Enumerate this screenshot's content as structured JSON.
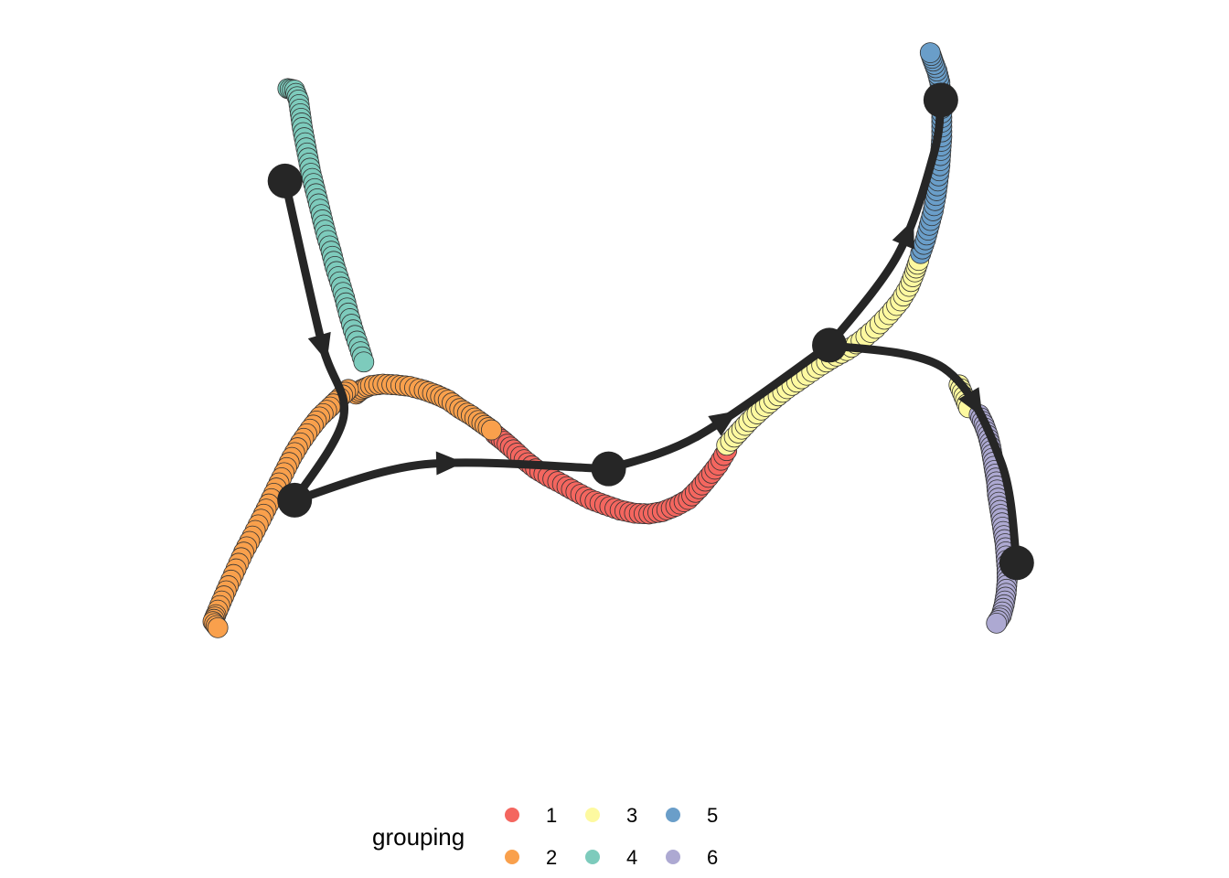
{
  "chart_data": {
    "type": "scatter",
    "title": "",
    "xlabel": "",
    "ylabel": "",
    "axes_visible": false,
    "grid": false,
    "legend": {
      "title": "grouping",
      "position": "bottom",
      "entries": [
        {
          "label": "1",
          "color": "#f4665f"
        },
        {
          "label": "2",
          "color": "#f9a04c"
        },
        {
          "label": "3",
          "color": "#fdf9a0"
        },
        {
          "label": "4",
          "color": "#7dcbbc"
        },
        {
          "label": "5",
          "color": "#6a9ec9"
        },
        {
          "label": "6",
          "color": "#ada9d2"
        }
      ]
    },
    "xlim": [
      0,
      100
    ],
    "ylim": [
      0,
      100
    ],
    "series": [
      {
        "name": "1",
        "color": "#f4665f",
        "points": [
          [
            37.3,
            44.3
          ],
          [
            38.2,
            43.4
          ],
          [
            39.2,
            42.3
          ],
          [
            40.3,
            41.0
          ],
          [
            41.5,
            39.8
          ],
          [
            42.8,
            38.8
          ],
          [
            44.3,
            37.8
          ],
          [
            45.7,
            36.8
          ],
          [
            47.2,
            35.8
          ],
          [
            48.7,
            35.1
          ],
          [
            50.3,
            34.4
          ],
          [
            51.8,
            34.0
          ],
          [
            53.3,
            33.9
          ],
          [
            54.7,
            34.2
          ],
          [
            56.1,
            34.9
          ],
          [
            57.4,
            35.8
          ],
          [
            58.5,
            37.2
          ],
          [
            59.5,
            38.7
          ],
          [
            60.5,
            40.3
          ],
          [
            61.4,
            42.2
          ]
        ]
      },
      {
        "name": "2",
        "color": "#f9a04c",
        "points": [
          [
            22.8,
            49.6
          ],
          [
            23.4,
            50.2
          ],
          [
            24.3,
            50.7
          ],
          [
            25.6,
            50.9
          ],
          [
            27.0,
            50.8
          ],
          [
            28.4,
            50.6
          ],
          [
            29.9,
            50.1
          ],
          [
            31.2,
            49.5
          ],
          [
            32.4,
            48.8
          ],
          [
            33.6,
            47.7
          ],
          [
            34.8,
            46.8
          ],
          [
            35.9,
            45.8
          ],
          [
            36.9,
            44.9
          ],
          [
            22.0,
            50.2
          ],
          [
            21.1,
            49.1
          ],
          [
            20.1,
            47.9
          ],
          [
            19.0,
            46.6
          ],
          [
            18.0,
            45.0
          ],
          [
            17.0,
            43.2
          ],
          [
            16.1,
            41.3
          ],
          [
            15.3,
            39.3
          ],
          [
            14.5,
            37.3
          ],
          [
            13.7,
            35.2
          ],
          [
            12.9,
            33.2
          ],
          [
            12.0,
            31.0
          ],
          [
            11.1,
            28.9
          ],
          [
            10.3,
            26.7
          ],
          [
            9.5,
            24.5
          ],
          [
            8.8,
            22.5
          ],
          [
            8.2,
            20.7
          ],
          [
            7.9,
            19.8
          ],
          [
            8.4,
            19.0
          ]
        ]
      },
      {
        "name": "3",
        "color": "#fdf9a0",
        "points": [
          [
            61.4,
            42.9
          ],
          [
            62.6,
            44.5
          ],
          [
            63.7,
            46.0
          ],
          [
            65.0,
            47.5
          ],
          [
            66.3,
            48.9
          ],
          [
            67.7,
            50.3
          ],
          [
            69.2,
            51.6
          ],
          [
            70.8,
            53.0
          ],
          [
            72.3,
            54.2
          ],
          [
            73.9,
            55.3
          ],
          [
            75.4,
            56.6
          ],
          [
            76.9,
            58.2
          ],
          [
            78.3,
            60.0
          ],
          [
            79.5,
            61.8
          ],
          [
            80.4,
            63.7
          ],
          [
            81.0,
            65.6
          ],
          [
            81.4,
            67.1
          ],
          [
            85.6,
            50.8
          ],
          [
            86.1,
            49.3
          ],
          [
            86.6,
            47.8
          ]
        ]
      },
      {
        "name": "4",
        "color": "#7dcbbc",
        "points": [
          [
            15.7,
            89.6
          ],
          [
            16.4,
            89.4
          ],
          [
            16.8,
            88.1
          ],
          [
            17.0,
            86.3
          ],
          [
            17.2,
            84.5
          ],
          [
            17.5,
            82.5
          ],
          [
            17.8,
            80.5
          ],
          [
            18.1,
            78.5
          ],
          [
            18.5,
            76.5
          ],
          [
            18.9,
            74.5
          ],
          [
            19.3,
            72.4
          ],
          [
            19.7,
            70.4
          ],
          [
            20.2,
            68.3
          ],
          [
            20.6,
            66.3
          ],
          [
            21.1,
            64.3
          ],
          [
            21.6,
            62.2
          ],
          [
            22.0,
            60.2
          ],
          [
            22.5,
            58.0
          ],
          [
            23.1,
            55.8
          ],
          [
            23.6,
            53.8
          ]
        ]
      },
      {
        "name": "5",
        "color": "#6a9ec9",
        "points": [
          [
            81.6,
            68.0
          ],
          [
            82.1,
            69.8
          ],
          [
            82.5,
            71.7
          ],
          [
            82.9,
            73.6
          ],
          [
            83.2,
            75.6
          ],
          [
            83.4,
            77.5
          ],
          [
            83.6,
            79.5
          ],
          [
            83.7,
            81.5
          ],
          [
            83.8,
            83.3
          ],
          [
            83.8,
            85.2
          ],
          [
            83.8,
            87.0
          ],
          [
            83.7,
            88.7
          ],
          [
            83.6,
            90.4
          ],
          [
            83.3,
            91.9
          ],
          [
            82.9,
            93.2
          ],
          [
            82.6,
            94.3
          ]
        ]
      },
      {
        "name": "6",
        "color": "#ada9d2",
        "points": [
          [
            87.7,
            46.9
          ],
          [
            88.2,
            45.6
          ],
          [
            88.6,
            44.2
          ],
          [
            88.9,
            42.7
          ],
          [
            89.1,
            41.2
          ],
          [
            89.3,
            39.6
          ],
          [
            89.5,
            38.1
          ],
          [
            89.6,
            36.5
          ],
          [
            89.8,
            34.9
          ],
          [
            90.0,
            33.3
          ],
          [
            90.2,
            31.6
          ],
          [
            90.4,
            30.0
          ],
          [
            90.5,
            28.4
          ],
          [
            90.6,
            26.7
          ],
          [
            90.6,
            25.1
          ],
          [
            90.5,
            23.5
          ],
          [
            90.3,
            22.0
          ],
          [
            90.0,
            20.6
          ],
          [
            89.5,
            19.6
          ]
        ]
      }
    ],
    "trajectory": {
      "nodes": [
        {
          "id": "A",
          "x": 15.4,
          "y": 77.5
        },
        {
          "id": "B",
          "x": 16.4,
          "y": 35.7
        },
        {
          "id": "C",
          "x": 49.1,
          "y": 39.8
        },
        {
          "id": "D",
          "x": 72.1,
          "y": 56.0
        },
        {
          "id": "E",
          "x": 83.7,
          "y": 88.1
        },
        {
          "id": "F",
          "x": 91.6,
          "y": 27.5
        }
      ],
      "edges": [
        {
          "from": "A",
          "to": "B",
          "via": [
            [
              19.2,
              56.4
            ],
            [
              21.5,
              46.6
            ]
          ]
        },
        {
          "from": "B",
          "to": "C",
          "via": [
            [
              30.0,
              40.4
            ]
          ]
        },
        {
          "from": "C",
          "to": "D",
          "via": [
            [
              58.4,
              44.1
            ]
          ]
        },
        {
          "from": "D",
          "to": "E",
          "via": [
            [
              79.2,
              67.8
            ],
            [
              83.0,
              81.2
            ]
          ]
        },
        {
          "from": "D",
          "to": "F",
          "via": [
            [
              84.0,
              53.0
            ],
            [
              90.0,
              40.6
            ]
          ]
        }
      ]
    }
  }
}
